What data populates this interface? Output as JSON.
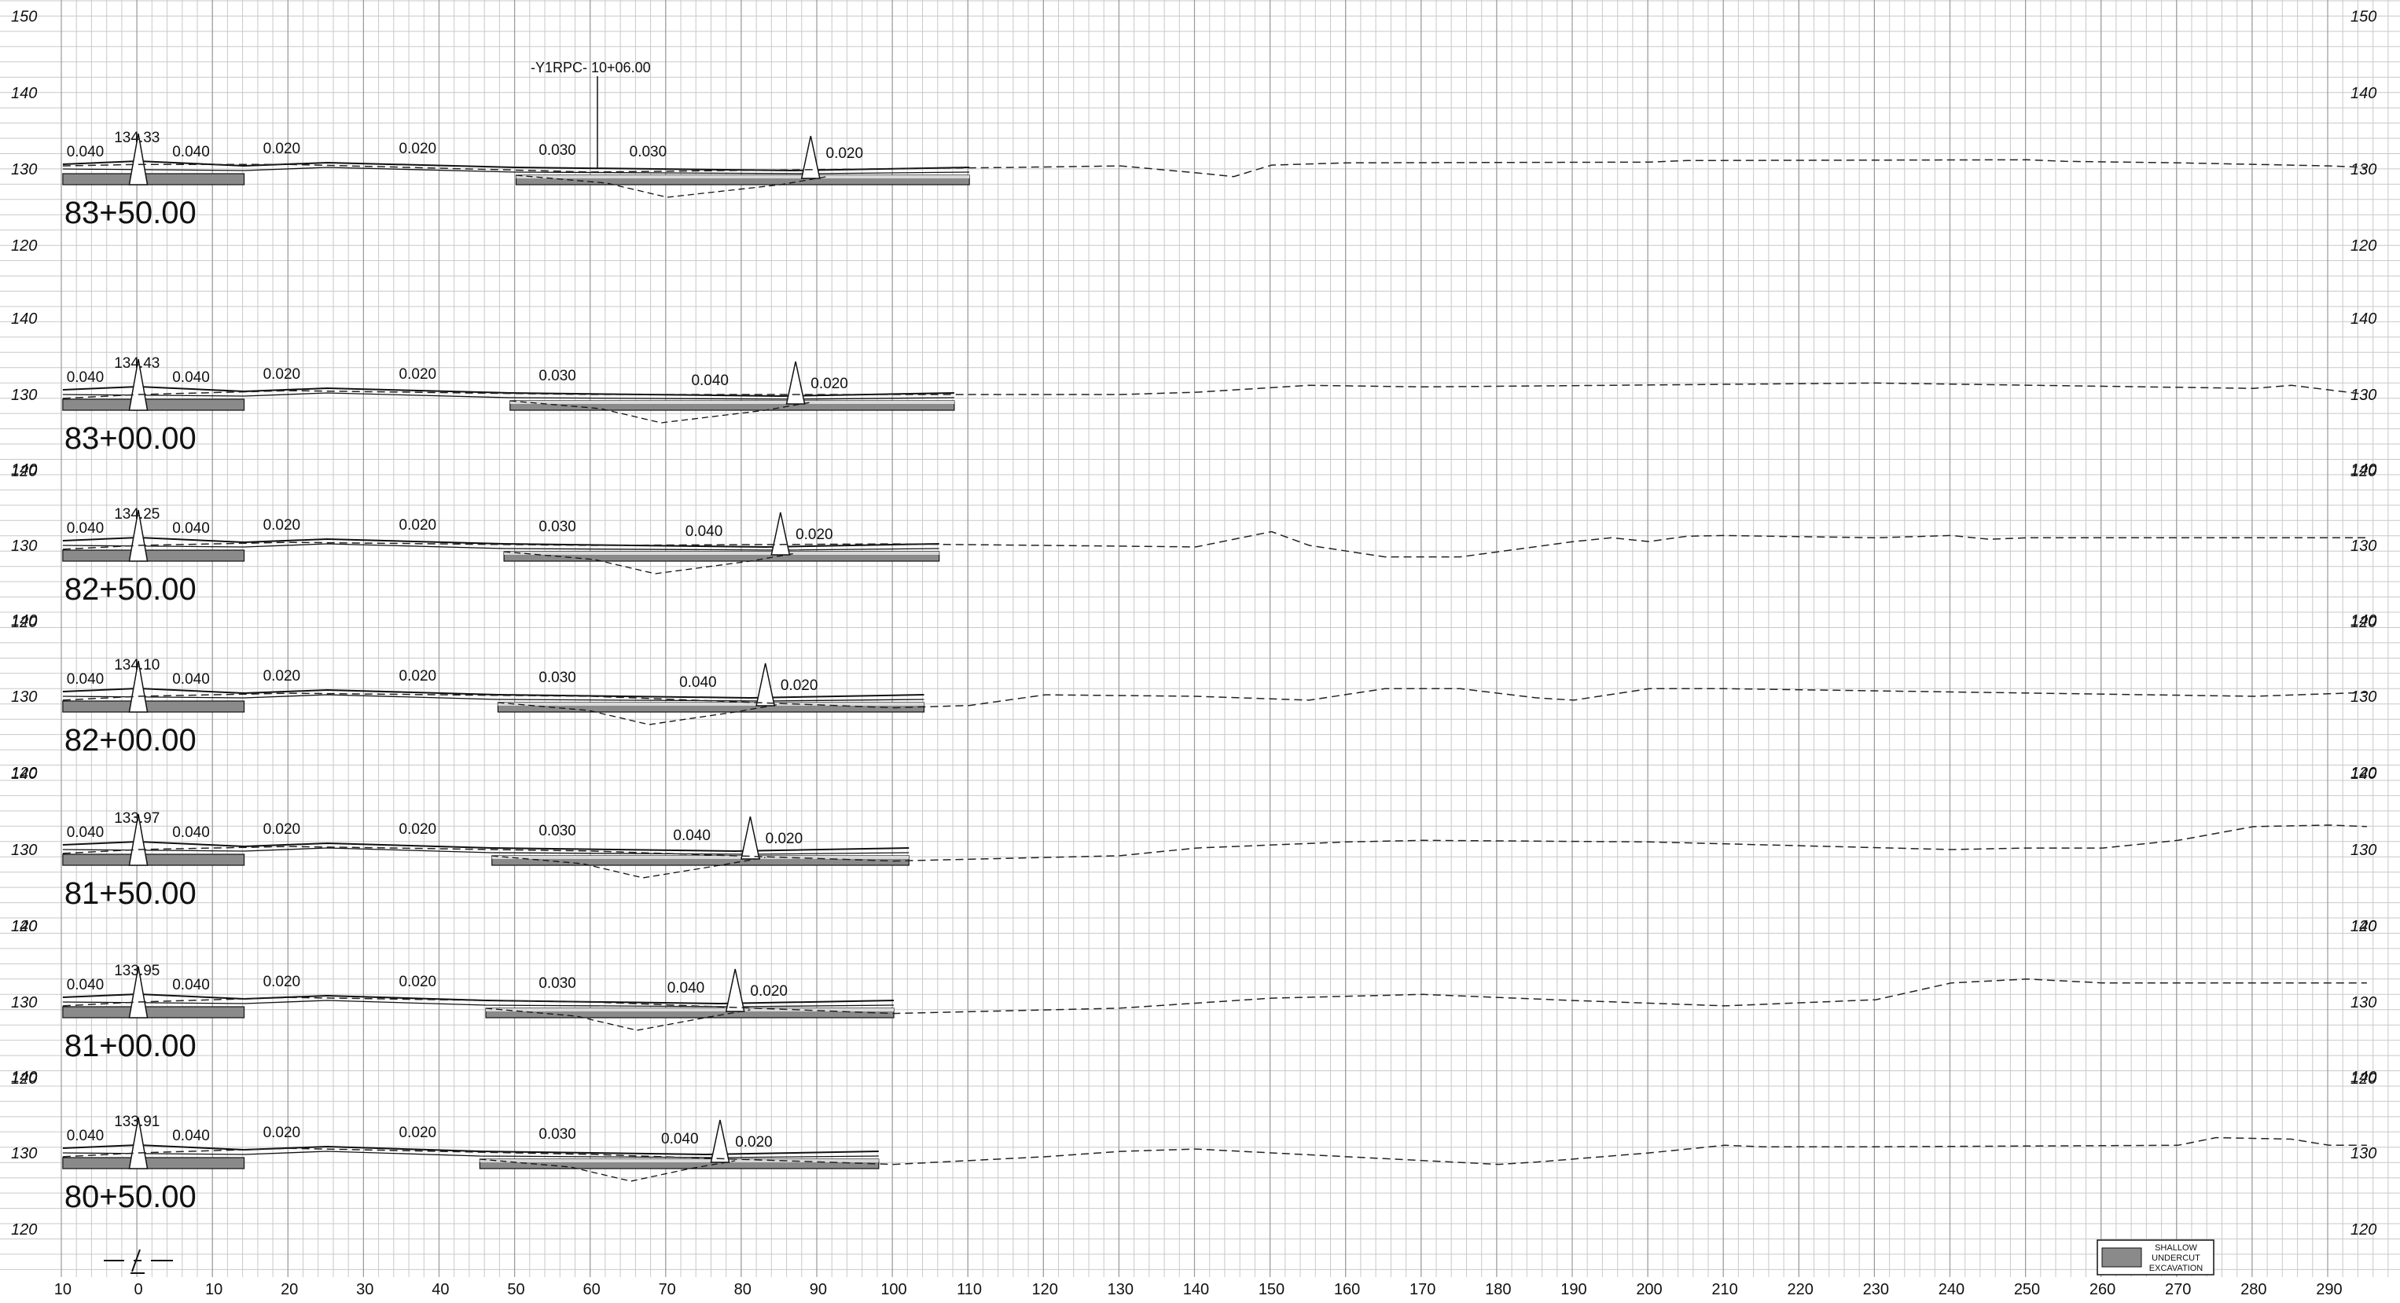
{
  "x_axis": {
    "ticks": [
      "10",
      "0",
      "10",
      "20",
      "30",
      "40",
      "50",
      "60",
      "70",
      "80",
      "90",
      "100",
      "110",
      "120",
      "130",
      "140",
      "150",
      "160",
      "170",
      "180",
      "190",
      "200",
      "210",
      "220",
      "230",
      "240",
      "250",
      "260",
      "270",
      "280",
      "290"
    ]
  },
  "centerline_symbol": "centerline",
  "alignment_label": "-Y1RPC- 10+06.00",
  "legend": {
    "line1": "SHALLOW",
    "line2": "UNDERCUT",
    "line3": "EXCAVATION",
    "swatch_color": "#8a8a8a"
  },
  "sections": [
    {
      "station": "83+50.00",
      "elevation": "134.33",
      "y_labels": [
        "150",
        "140",
        "130",
        "120"
      ],
      "slopes": [
        "0.040",
        "0.040",
        "0.020",
        "0.020",
        "0.030",
        "0.030",
        "0.020"
      ],
      "ground": [
        [
          -10,
          130.4
        ],
        [
          0,
          130.6
        ],
        [
          20,
          130.6
        ],
        [
          60,
          129.6
        ],
        [
          115,
          130.2
        ],
        [
          130,
          130.4
        ],
        [
          140,
          129.5
        ],
        [
          145,
          129.0
        ],
        [
          150,
          130.5
        ],
        [
          160,
          130.8
        ],
        [
          200,
          130.9
        ],
        [
          205,
          131.1
        ],
        [
          250,
          131.2
        ],
        [
          255,
          131.0
        ],
        [
          270,
          130.8
        ],
        [
          290,
          130.4
        ],
        [
          295,
          130.2
        ]
      ]
    },
    {
      "station": "83+00.00",
      "elevation": "134.43",
      "y_labels": [
        "140",
        "130",
        "120"
      ],
      "slopes": [
        "0.040",
        "0.040",
        "0.020",
        "0.020",
        "0.030",
        "0.040",
        "0.020"
      ],
      "ground": [
        [
          -10,
          129.5
        ],
        [
          0,
          130.0
        ],
        [
          20,
          130.5
        ],
        [
          60,
          130.0
        ],
        [
          110,
          130.0
        ],
        [
          130,
          130.0
        ],
        [
          140,
          130.3
        ],
        [
          155,
          131.2
        ],
        [
          170,
          131.0
        ],
        [
          230,
          131.5
        ],
        [
          280,
          130.8
        ],
        [
          285,
          131.2
        ],
        [
          295,
          130.0
        ]
      ]
    },
    {
      "station": "82+50.00",
      "elevation": "134.25",
      "y_labels": [
        "140",
        "130",
        "120"
      ],
      "slopes": [
        "0.040",
        "0.040",
        "0.020",
        "0.020",
        "0.030",
        "0.040",
        "0.020"
      ],
      "ground": [
        [
          -10,
          129.5
        ],
        [
          0,
          130.0
        ],
        [
          20,
          130.4
        ],
        [
          60,
          130.0
        ],
        [
          100,
          130.2
        ],
        [
          140,
          129.8
        ],
        [
          150,
          131.8
        ],
        [
          155,
          130.0
        ],
        [
          165,
          128.5
        ],
        [
          175,
          128.5
        ],
        [
          190,
          130.5
        ],
        [
          195,
          131.0
        ],
        [
          200,
          130.5
        ],
        [
          205,
          131.2
        ],
        [
          210,
          131.3
        ],
        [
          230,
          131.0
        ],
        [
          240,
          131.3
        ],
        [
          245,
          130.8
        ],
        [
          250,
          131.0
        ],
        [
          295,
          131.0
        ]
      ]
    },
    {
      "station": "82+00.00",
      "elevation": "134.10",
      "y_labels": [
        "140",
        "130",
        "120"
      ],
      "slopes": [
        "0.040",
        "0.040",
        "0.020",
        "0.020",
        "0.030",
        "0.040",
        "0.020"
      ],
      "ground": [
        [
          -10,
          129.5
        ],
        [
          0,
          130.0
        ],
        [
          20,
          130.4
        ],
        [
          60,
          130.0
        ],
        [
          100,
          128.5
        ],
        [
          110,
          128.8
        ],
        [
          120,
          130.2
        ],
        [
          140,
          130.0
        ],
        [
          155,
          129.5
        ],
        [
          165,
          131.0
        ],
        [
          175,
          131.0
        ],
        [
          185,
          129.8
        ],
        [
          190,
          129.5
        ],
        [
          200,
          131.0
        ],
        [
          210,
          131.0
        ],
        [
          280,
          130.0
        ],
        [
          295,
          130.5
        ]
      ]
    },
    {
      "station": "81+50.00",
      "elevation": "133.97",
      "y_labels": [
        "140",
        "130",
        "120"
      ],
      "slopes": [
        "0.040",
        "0.040",
        "0.020",
        "0.020",
        "0.030",
        "0.040",
        "0.020"
      ],
      "ground": [
        [
          -10,
          129.5
        ],
        [
          0,
          130.0
        ],
        [
          20,
          130.4
        ],
        [
          60,
          129.8
        ],
        [
          100,
          128.5
        ],
        [
          130,
          129.2
        ],
        [
          140,
          130.2
        ],
        [
          160,
          131.0
        ],
        [
          170,
          131.2
        ],
        [
          200,
          131.0
        ],
        [
          240,
          130.0
        ],
        [
          250,
          130.2
        ],
        [
          260,
          130.2
        ],
        [
          270,
          131.2
        ],
        [
          280,
          133.0
        ],
        [
          290,
          133.2
        ],
        [
          295,
          133.0
        ]
      ]
    },
    {
      "station": "81+00.00",
      "elevation": "133.95",
      "y_labels": [
        "140",
        "130",
        "120"
      ],
      "slopes": [
        "0.040",
        "0.040",
        "0.020",
        "0.020",
        "0.030",
        "0.040",
        "0.020"
      ],
      "ground": [
        [
          -10,
          129.5
        ],
        [
          0,
          130.0
        ],
        [
          20,
          130.6
        ],
        [
          60,
          130.0
        ],
        [
          100,
          128.5
        ],
        [
          130,
          129.2
        ],
        [
          150,
          130.5
        ],
        [
          170,
          131.0
        ],
        [
          190,
          130.2
        ],
        [
          210,
          129.5
        ],
        [
          230,
          130.3
        ],
        [
          240,
          132.5
        ],
        [
          250,
          133.0
        ],
        [
          260,
          132.5
        ],
        [
          290,
          132.5
        ],
        [
          295,
          132.5
        ]
      ]
    },
    {
      "station": "80+50.00",
      "elevation": "133.91",
      "y_labels": [
        "140",
        "130",
        "120"
      ],
      "slopes": [
        "0.040",
        "0.040",
        "0.020",
        "0.020",
        "0.030",
        "0.040",
        "0.020"
      ],
      "ground": [
        [
          -10,
          129.5
        ],
        [
          0,
          130.0
        ],
        [
          20,
          130.6
        ],
        [
          60,
          129.8
        ],
        [
          100,
          128.5
        ],
        [
          120,
          129.5
        ],
        [
          130,
          130.2
        ],
        [
          140,
          130.5
        ],
        [
          180,
          128.5
        ],
        [
          185,
          128.8
        ],
        [
          200,
          130.0
        ],
        [
          210,
          131.0
        ],
        [
          215,
          130.8
        ],
        [
          230,
          130.8
        ],
        [
          270,
          131.0
        ],
        [
          275,
          132.0
        ],
        [
          285,
          131.8
        ],
        [
          290,
          131.0
        ],
        [
          295,
          131.0
        ]
      ]
    }
  ]
}
